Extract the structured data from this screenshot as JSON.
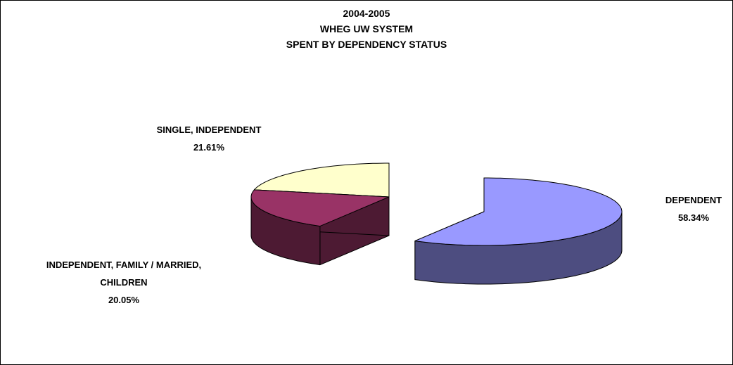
{
  "chart_data": {
    "type": "pie3d",
    "title": [
      "2004-2005",
      "WHEG UW SYSTEM",
      "SPENT BY DEPENDENCY STATUS"
    ],
    "categories": [
      "DEPENDENT",
      "INDEPENDENT, FAMILY / MARRIED, CHILDREN",
      "SINGLE, INDEPENDENT"
    ],
    "values": [
      58.34,
      20.05,
      21.61
    ],
    "value_labels": [
      "58.34%",
      "20.05%",
      "21.61%"
    ],
    "colors": [
      "#9999ff",
      "#993366",
      "#ffffcc"
    ],
    "side_colors": [
      "#4d4d80",
      "#4d1a33",
      "#808066"
    ]
  }
}
